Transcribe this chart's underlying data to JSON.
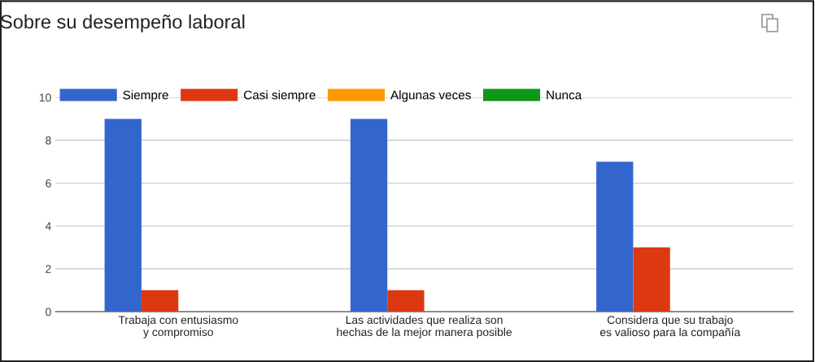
{
  "chart_data": {
    "type": "bar",
    "title": "Sobre su desempeño laboral",
    "categories": [
      "Trabaja con entusiasmo y compromiso",
      "Las actividades que realiza son hechas de la mejor manera posible",
      "Considera que su trabajo es valioso para la compañía"
    ],
    "series": [
      {
        "name": "Siempre",
        "color": "#3366cc",
        "values": [
          9,
          9,
          7
        ]
      },
      {
        "name": "Casi siempre",
        "color": "#dc3912",
        "values": [
          1,
          1,
          3
        ]
      },
      {
        "name": "Algunas veces",
        "color": "#ff9900",
        "values": [
          0,
          0,
          0
        ]
      },
      {
        "name": "Nunca",
        "color": "#109618",
        "values": [
          0,
          0,
          0
        ]
      }
    ],
    "ylim": [
      0,
      10
    ],
    "yticks": [
      0,
      2,
      4,
      6,
      8,
      10
    ],
    "grid": "y",
    "legend": "top left"
  }
}
